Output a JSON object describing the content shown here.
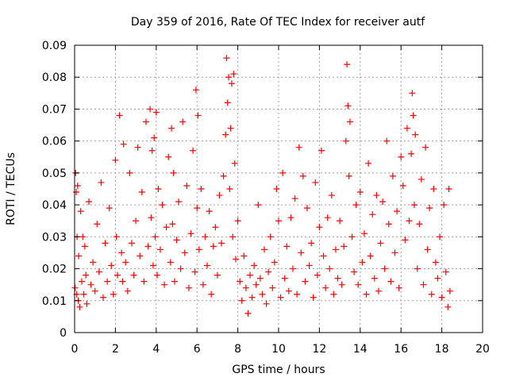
{
  "chart_data": {
    "type": "scatter",
    "title": "Day 359 of 2016, Rate Of TEC Index for receiver autf",
    "xlabel": "GPS time / hours",
    "ylabel": "ROTI / TECUs",
    "xlim": [
      0,
      20
    ],
    "ylim": [
      0,
      0.09
    ],
    "x_ticks": [
      "0",
      "2",
      "4",
      "6",
      "8",
      "10",
      "12",
      "14",
      "16",
      "18",
      "20"
    ],
    "y_ticks": [
      "0",
      "0.01",
      "0.02",
      "0.03",
      "0.04",
      "0.05",
      "0.06",
      "0.07",
      "0.08",
      "0.09"
    ],
    "grid": true,
    "marker": "+",
    "color": "#ff0000",
    "series": [
      {
        "x": [
          0.02,
          0.05,
          0.08,
          0.1,
          0.12,
          0.15,
          0.18,
          0.2,
          0.25,
          0.3,
          0.35,
          0.4,
          0.45,
          0.5,
          0.55,
          0.6,
          0.7,
          0.8,
          0.9,
          1.0,
          1.1,
          1.2,
          1.3,
          1.4,
          1.5,
          1.6,
          1.7,
          1.8,
          1.9,
          2.0,
          2.05,
          2.1,
          2.2,
          2.3,
          2.35,
          2.4,
          2.5,
          2.6,
          2.7,
          2.8,
          2.9,
          3.0,
          3.1,
          3.2,
          3.3,
          3.4,
          3.5,
          3.6,
          3.7,
          3.75,
          3.8,
          3.85,
          3.9,
          3.95,
          4.0,
          4.05,
          4.1,
          4.2,
          4.3,
          4.4,
          4.5,
          4.6,
          4.7,
          4.75,
          4.8,
          4.85,
          4.9,
          5.0,
          5.1,
          5.2,
          5.3,
          5.4,
          5.5,
          5.6,
          5.7,
          5.8,
          5.9,
          5.95,
          6.0,
          6.05,
          6.1,
          6.2,
          6.3,
          6.4,
          6.5,
          6.6,
          6.7,
          6.8,
          6.9,
          7.0,
          7.1,
          7.2,
          7.3,
          7.4,
          7.45,
          7.5,
          7.55,
          7.6,
          7.65,
          7.7,
          7.75,
          7.8,
          7.85,
          7.9,
          8.0,
          8.1,
          8.2,
          8.3,
          8.4,
          8.5,
          8.6,
          8.7,
          8.8,
          8.9,
          9.0,
          9.1,
          9.2,
          9.3,
          9.4,
          9.5,
          9.6,
          9.7,
          9.8,
          9.9,
          10.0,
          10.1,
          10.2,
          10.3,
          10.4,
          10.5,
          10.6,
          10.7,
          10.8,
          10.9,
          11.0,
          11.1,
          11.2,
          11.3,
          11.4,
          11.5,
          11.6,
          11.7,
          11.8,
          11.9,
          12.0,
          12.1,
          12.2,
          12.3,
          12.4,
          12.5,
          12.6,
          12.7,
          12.8,
          12.9,
          13.0,
          13.1,
          13.2,
          13.3,
          13.35,
          13.4,
          13.45,
          13.5,
          13.6,
          13.7,
          13.8,
          13.9,
          14.0,
          14.1,
          14.2,
          14.3,
          14.4,
          14.5,
          14.6,
          14.7,
          14.8,
          14.9,
          15.0,
          15.1,
          15.2,
          15.3,
          15.4,
          15.5,
          15.6,
          15.7,
          15.8,
          15.9,
          16.0,
          16.1,
          16.2,
          16.3,
          16.4,
          16.5,
          16.55,
          16.6,
          16.65,
          16.7,
          16.8,
          16.9,
          17.0,
          17.1,
          17.2,
          17.3,
          17.4,
          17.5,
          17.6,
          17.7,
          17.8,
          17.9,
          18.0,
          18.1,
          18.2,
          18.3,
          18.35,
          18.4
        ],
        "y": [
          0.014,
          0.05,
          0.044,
          0.012,
          0.03,
          0.046,
          0.01,
          0.024,
          0.008,
          0.038,
          0.016,
          0.03,
          0.012,
          0.027,
          0.018,
          0.009,
          0.041,
          0.015,
          0.022,
          0.013,
          0.034,
          0.019,
          0.047,
          0.011,
          0.028,
          0.016,
          0.039,
          0.021,
          0.012,
          0.054,
          0.03,
          0.018,
          0.068,
          0.025,
          0.016,
          0.059,
          0.022,
          0.013,
          0.05,
          0.028,
          0.018,
          0.035,
          0.058,
          0.024,
          0.044,
          0.016,
          0.066,
          0.027,
          0.07,
          0.036,
          0.057,
          0.021,
          0.061,
          0.03,
          0.069,
          0.018,
          0.045,
          0.026,
          0.04,
          0.015,
          0.033,
          0.055,
          0.022,
          0.064,
          0.034,
          0.05,
          0.016,
          0.029,
          0.041,
          0.02,
          0.066,
          0.025,
          0.046,
          0.014,
          0.031,
          0.057,
          0.019,
          0.076,
          0.039,
          0.068,
          0.026,
          0.045,
          0.015,
          0.03,
          0.021,
          0.038,
          0.012,
          0.027,
          0.033,
          0.018,
          0.043,
          0.028,
          0.049,
          0.062,
          0.086,
          0.072,
          0.08,
          0.045,
          0.064,
          0.078,
          0.03,
          0.081,
          0.053,
          0.023,
          0.035,
          0.016,
          0.01,
          0.024,
          0.014,
          0.006,
          0.018,
          0.011,
          0.021,
          0.015,
          0.04,
          0.017,
          0.012,
          0.026,
          0.009,
          0.019,
          0.03,
          0.014,
          0.022,
          0.045,
          0.035,
          0.011,
          0.05,
          0.017,
          0.027,
          0.013,
          0.036,
          0.02,
          0.042,
          0.012,
          0.058,
          0.025,
          0.049,
          0.016,
          0.039,
          0.021,
          0.028,
          0.011,
          0.047,
          0.018,
          0.033,
          0.057,
          0.024,
          0.014,
          0.036,
          0.02,
          0.043,
          0.012,
          0.026,
          0.017,
          0.035,
          0.015,
          0.027,
          0.06,
          0.084,
          0.071,
          0.049,
          0.066,
          0.03,
          0.019,
          0.04,
          0.015,
          0.044,
          0.022,
          0.031,
          0.012,
          0.053,
          0.024,
          0.037,
          0.017,
          0.043,
          0.013,
          0.028,
          0.041,
          0.02,
          0.06,
          0.034,
          0.016,
          0.049,
          0.025,
          0.038,
          0.014,
          0.055,
          0.046,
          0.029,
          0.064,
          0.035,
          0.056,
          0.075,
          0.068,
          0.04,
          0.062,
          0.02,
          0.034,
          0.048,
          0.015,
          0.058,
          0.026,
          0.039,
          0.012,
          0.045,
          0.022,
          0.017,
          0.03,
          0.011,
          0.04,
          0.019,
          0.008,
          0.045,
          0.013
        ]
      }
    ]
  }
}
